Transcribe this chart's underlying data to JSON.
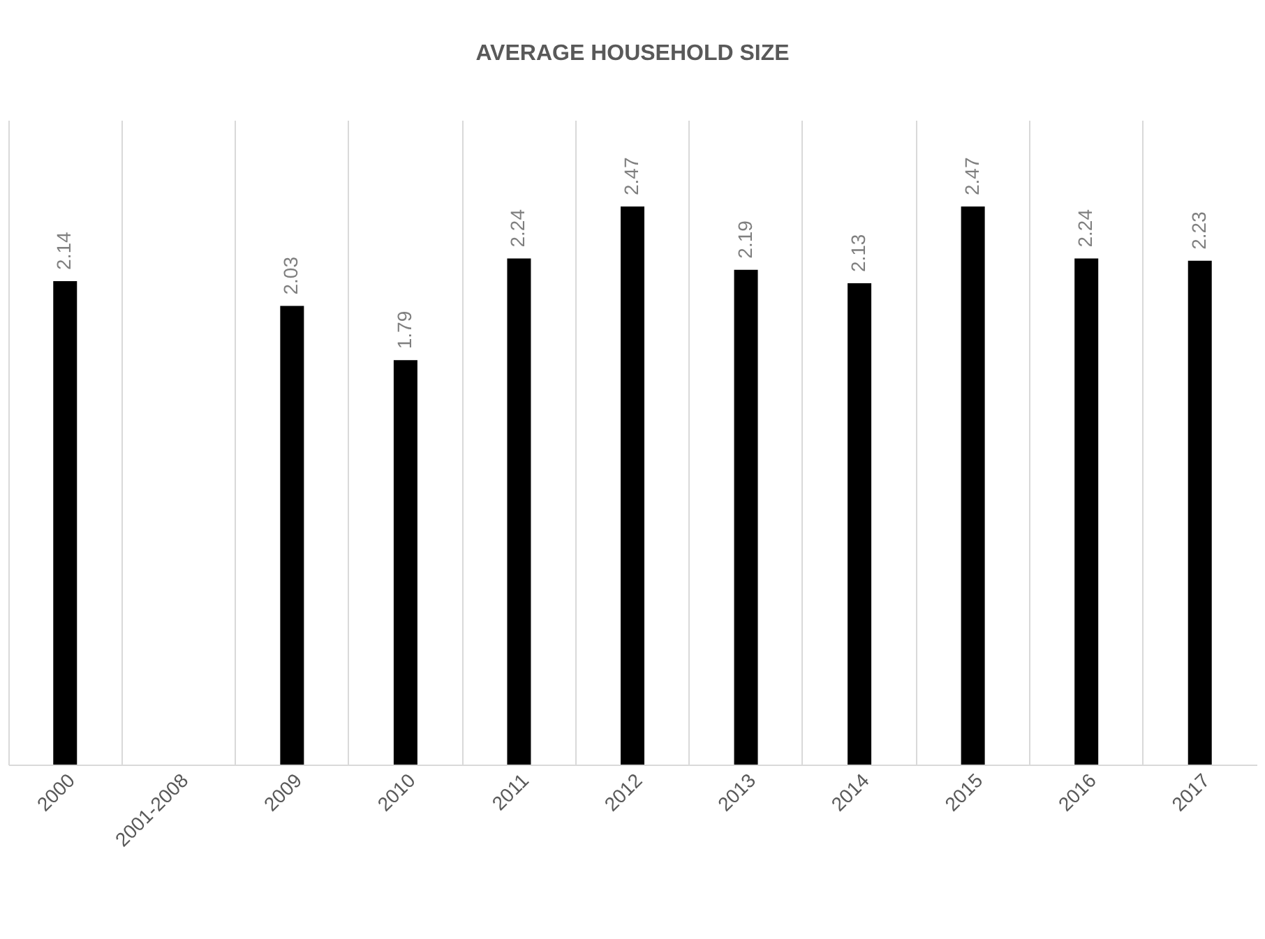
{
  "chart_data": {
    "type": "bar",
    "title": "AVERAGE HOUSEHOLD SIZE",
    "categories": [
      "2000",
      "2001-2008",
      "2009",
      "2010",
      "2011",
      "2012",
      "2013",
      "2014",
      "2015",
      "2016",
      "2017"
    ],
    "values": [
      2.14,
      null,
      2.03,
      1.79,
      2.24,
      2.47,
      2.19,
      2.13,
      2.47,
      2.24,
      2.23
    ],
    "color": "#000000",
    "data_labels": true,
    "grid": "x"
  }
}
